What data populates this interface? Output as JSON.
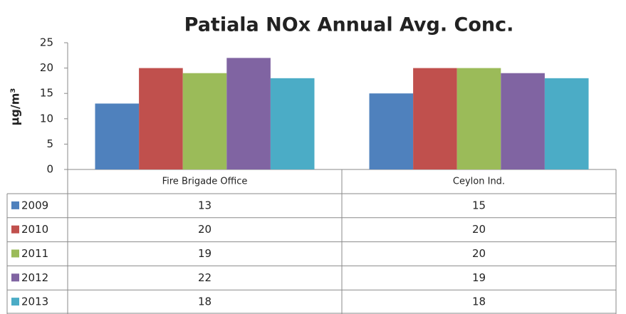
{
  "chart_data": {
    "type": "bar",
    "title": "Patiala NOx Annual Avg. Conc.",
    "y_label": "µg/m³",
    "categories": [
      "Fire Brigade Office",
      "Ceylon Ind."
    ],
    "series": [
      {
        "name": "2009",
        "color": "#4f81bd",
        "values": [
          13,
          15
        ]
      },
      {
        "name": "2010",
        "color": "#c0504d",
        "values": [
          20,
          20
        ]
      },
      {
        "name": "2011",
        "color": "#9bbb59",
        "values": [
          19,
          20
        ]
      },
      {
        "name": "2012",
        "color": "#8064a2",
        "values": [
          22,
          19
        ]
      },
      {
        "name": "2013",
        "color": "#4bacc6",
        "values": [
          18,
          18
        ]
      }
    ],
    "ylim": [
      0,
      25
    ],
    "yticks": [
      0,
      5,
      10,
      15,
      20,
      25
    ],
    "grid": false
  }
}
